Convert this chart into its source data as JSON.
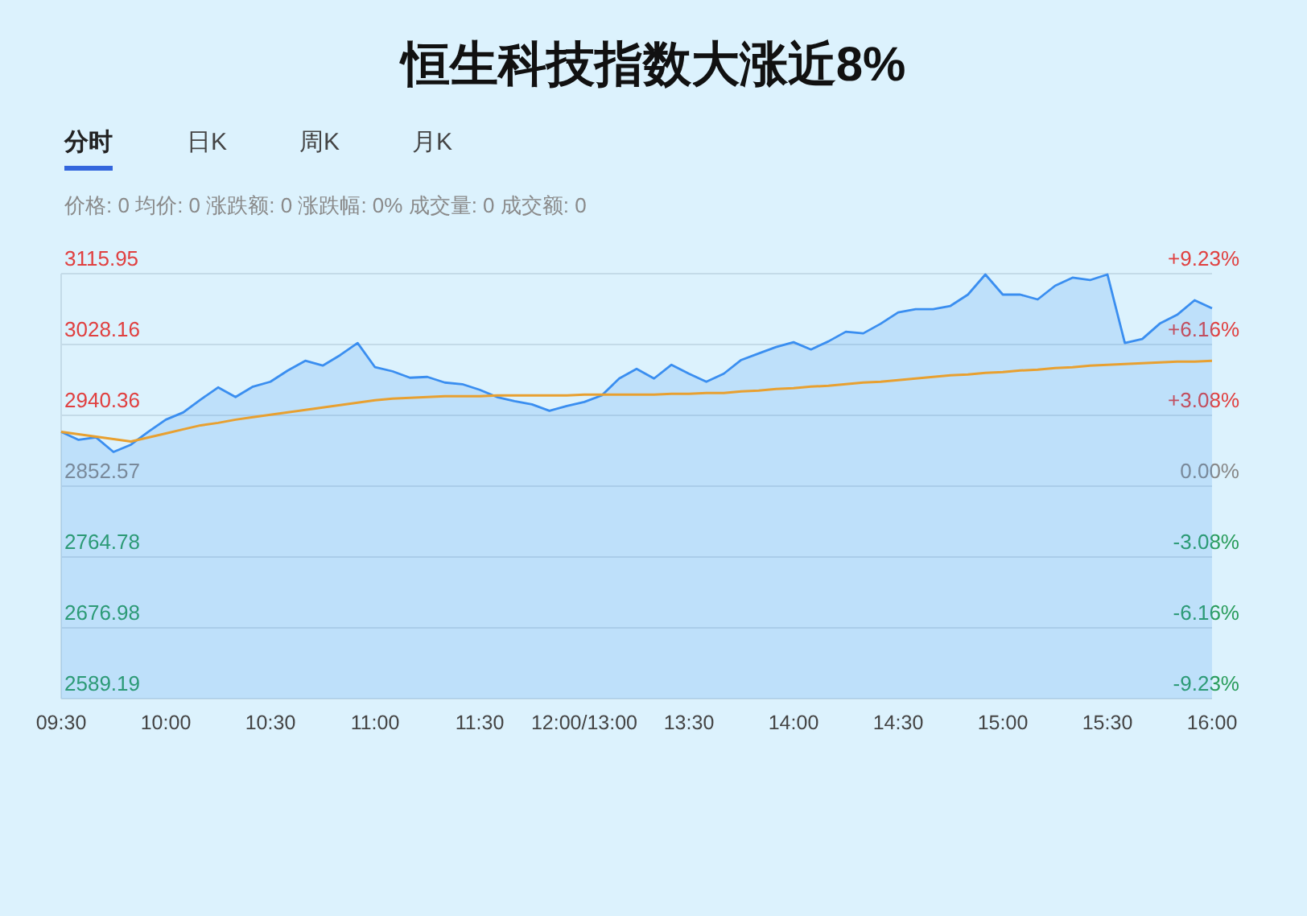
{
  "chart_data": {
    "type": "line",
    "title": "恒生科技指数大涨近8%",
    "annotations": [
      "分时",
      "日K",
      "周K",
      "月K",
      "价格: 0  均价: 0  涨跌额: 0  涨跌幅: 0%  成交量: 0  成交额: 0"
    ],
    "categories": [
      "09:30",
      null,
      null,
      null,
      null,
      null,
      "10:00",
      null,
      null,
      null,
      null,
      null,
      "10:30",
      null,
      null,
      null,
      null,
      null,
      "11:00",
      null,
      null,
      null,
      null,
      null,
      "11:30",
      null,
      null,
      null,
      null,
      null,
      "12:00/13:00",
      null,
      null,
      null,
      null,
      null,
      "13:30",
      null,
      null,
      null,
      null,
      null,
      "14:00",
      null,
      null,
      null,
      null,
      null,
      "14:30",
      null,
      null,
      null,
      null,
      null,
      "15:00",
      null,
      null,
      null,
      null,
      null,
      "15:30",
      null,
      null,
      null,
      null,
      null,
      "16:00"
    ],
    "ylim": [
      2589.19,
      3115.95
    ],
    "yticks": [
      2589.19,
      2676.98,
      2764.78,
      2852.57,
      2940.36,
      3028.16,
      3115.95
    ],
    "y2lim": [
      -9.23,
      9.23
    ],
    "y2ticks": [
      {
        "value": -9.23,
        "label": "-9.23%"
      },
      {
        "value": -6.16,
        "label": "-6.16%"
      },
      {
        "value": -3.08,
        "label": "-3.08%"
      },
      {
        "value": 0,
        "label": "0.00%"
      },
      {
        "value": 3.08,
        "label": "+3.08%"
      },
      {
        "value": 6.16,
        "label": "+6.16%"
      },
      {
        "value": 9.23,
        "label": "+9.23%"
      }
    ],
    "grid": "y",
    "series": [
      {
        "type": "area",
        "color": "#3a8ef0",
        "values": [
          2920,
          2910,
          2913,
          2895,
          2904,
          2920,
          2935,
          2944,
          2960,
          2975,
          2963,
          2976,
          2982,
          2996,
          3008,
          3002,
          3015,
          3030,
          3000,
          2995,
          2987,
          2988,
          2981,
          2979,
          2972,
          2963,
          2958,
          2954,
          2946,
          2952,
          2957,
          2965,
          2986,
          2998,
          2986,
          3003,
          2992,
          2982,
          2992,
          3009,
          3017,
          3025,
          3031,
          3022,
          3032,
          3044,
          3042,
          3054,
          3068,
          3072,
          3072,
          3076,
          3090,
          3115,
          3090,
          3090,
          3084,
          3101,
          3111,
          3108,
          3115,
          3030,
          3035,
          3054,
          3065,
          3083,
          3073
        ]
      },
      {
        "type": "line",
        "color": "#e8a030",
        "values": [
          2920,
          2917,
          2914,
          2911,
          2908,
          2913,
          2918,
          2923,
          2928,
          2931,
          2935,
          2938,
          2941,
          2944,
          2947,
          2950,
          2953,
          2956,
          2959,
          2961,
          2962,
          2963,
          2964,
          2964,
          2964,
          2965,
          2965,
          2965,
          2965,
          2965,
          2966,
          2966,
          2966,
          2966,
          2966,
          2967,
          2967,
          2968,
          2968,
          2970,
          2971,
          2973,
          2974,
          2976,
          2977,
          2979,
          2981,
          2982,
          2984,
          2986,
          2988,
          2990,
          2991,
          2993,
          2994,
          2996,
          2997,
          2999,
          3000,
          3002,
          3003,
          3004,
          3005,
          3006,
          3007,
          3007,
          3008
        ]
      }
    ]
  }
}
